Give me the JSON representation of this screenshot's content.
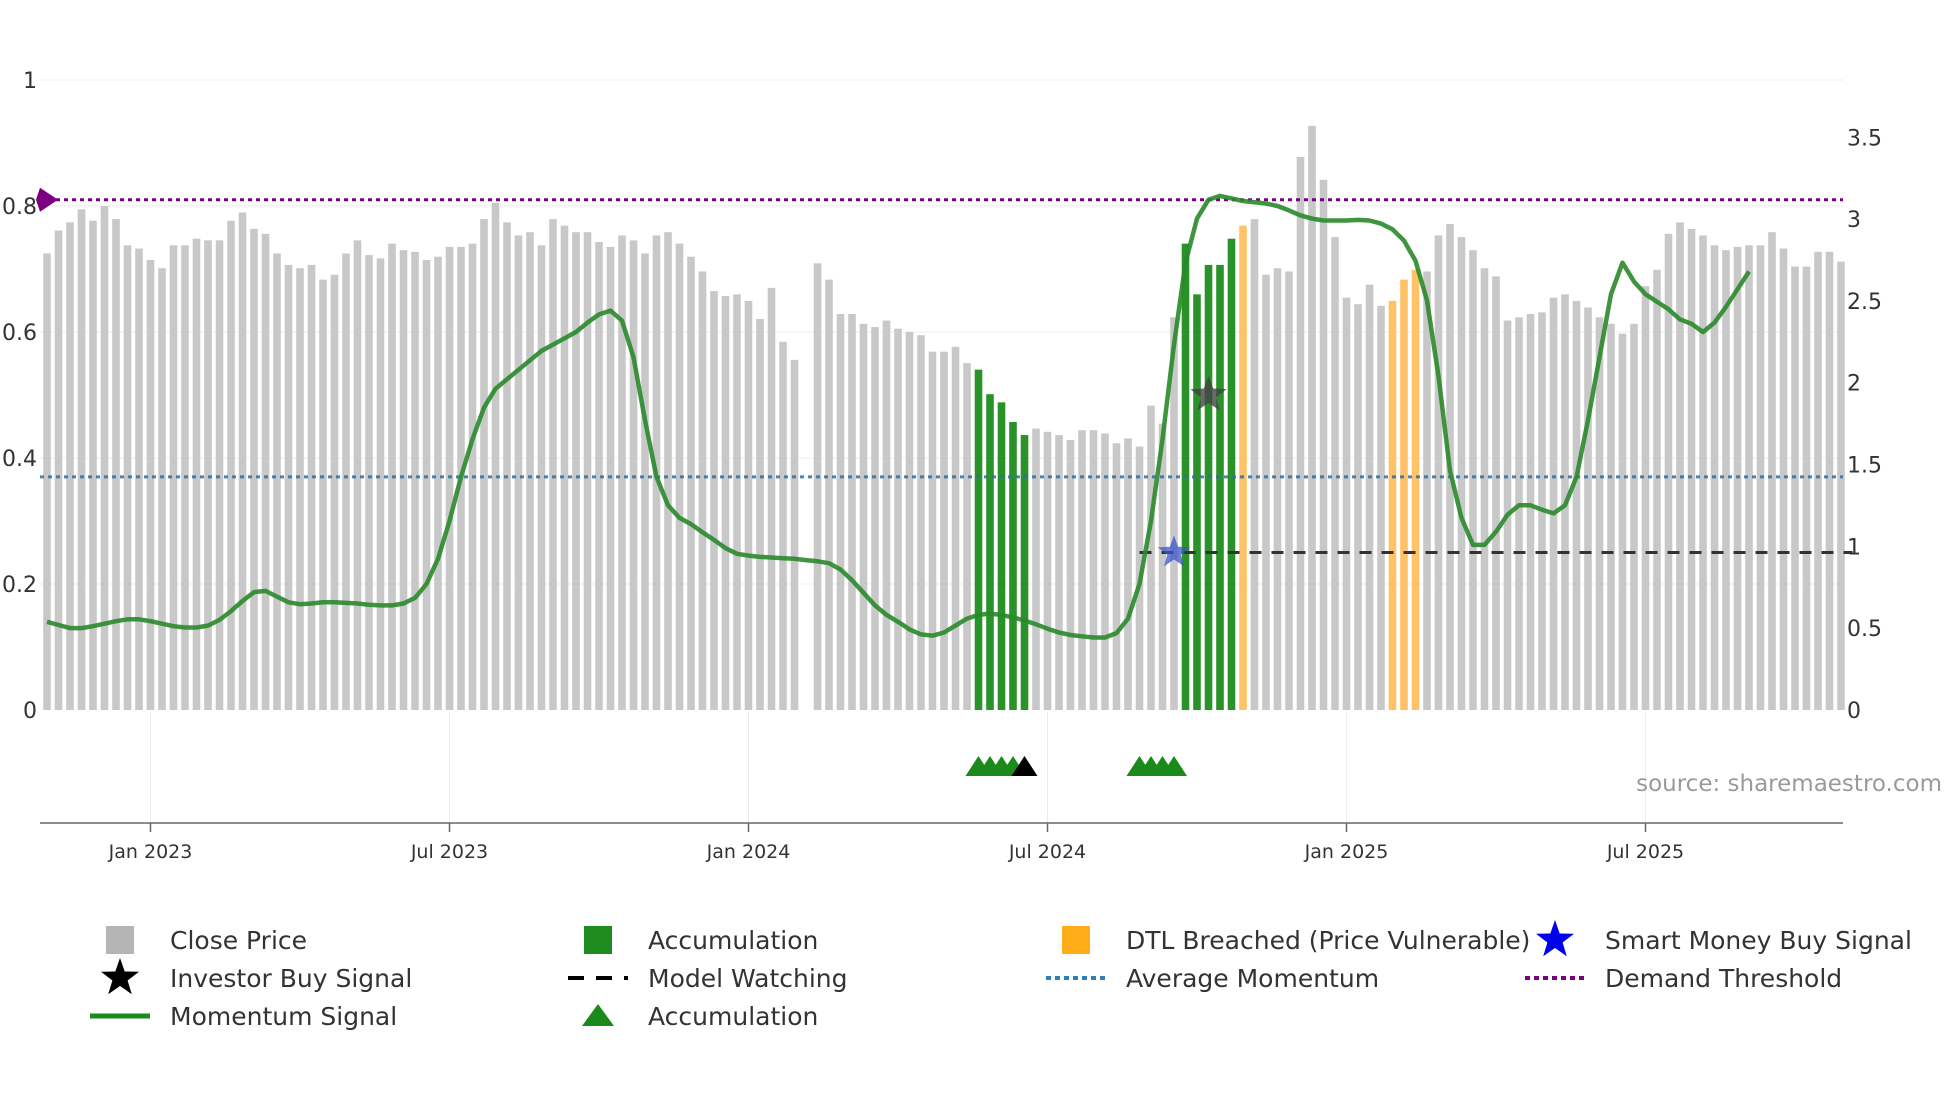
{
  "chart_data": {
    "type": "bar",
    "source": "source: sharemaestro.com",
    "left_axis": {
      "range": [
        0,
        1
      ],
      "ticks": [
        0,
        0.2,
        0.4,
        0.6,
        0.8,
        1
      ],
      "labels": [
        "0",
        "0.2",
        "0.4",
        "0.6",
        "0.8",
        "1"
      ]
    },
    "right_axis": {
      "range": [
        0,
        3.85
      ],
      "ticks": [
        0,
        0.5,
        1,
        1.5,
        2,
        2.5,
        3,
        3.5
      ],
      "labels": [
        "0",
        "0.5",
        "1",
        "1.5",
        "2",
        "2.5",
        "3",
        "3.5"
      ]
    },
    "x_axis": {
      "ticks": [
        {
          "week": 9,
          "label": "Jan 2023"
        },
        {
          "week": 35,
          "label": "Jul 2023"
        },
        {
          "week": 61,
          "label": "Jan 2024"
        },
        {
          "week": 87,
          "label": "Jul 2024"
        },
        {
          "week": 113,
          "label": "Jan 2025"
        },
        {
          "week": 139,
          "label": "Jul 2025"
        }
      ]
    },
    "colors": {
      "close": "#c8c8c8",
      "accumulation": "#1e8c1e",
      "dtl": "#ffc266",
      "momentum": "#2a8a2a",
      "average": "#2f6fa0",
      "demand": "#7a0080",
      "watch": "#333333"
    },
    "close_price": [
      2.79,
      2.93,
      2.98,
      3.06,
      2.99,
      3.08,
      3.0,
      2.84,
      2.82,
      2.75,
      2.7,
      2.84,
      2.84,
      2.88,
      2.87,
      2.87,
      2.99,
      3.04,
      2.94,
      2.91,
      2.79,
      2.72,
      2.7,
      2.72,
      2.63,
      2.66,
      2.79,
      2.87,
      2.78,
      2.76,
      2.85,
      2.81,
      2.8,
      2.75,
      2.77,
      2.83,
      2.83,
      2.85,
      3.0,
      3.1,
      2.98,
      2.9,
      2.92,
      2.84,
      3.0,
      2.96,
      2.92,
      2.92,
      2.86,
      2.83,
      2.9,
      2.87,
      2.79,
      2.9,
      2.92,
      2.85,
      2.77,
      2.68,
      2.56,
      2.53,
      2.54,
      2.5,
      2.39,
      2.58,
      2.25,
      2.14,
      null,
      2.73,
      2.63,
      2.42,
      2.42,
      2.36,
      2.34,
      2.38,
      2.33,
      2.31,
      2.29,
      2.19,
      2.19,
      2.22,
      2.12,
      2.08,
      1.93,
      1.88,
      1.76,
      1.68,
      1.72,
      1.7,
      1.68,
      1.65,
      1.71,
      1.71,
      1.69,
      1.63,
      1.66,
      1.61,
      1.86,
      1.75,
      2.4,
      2.85,
      2.54,
      2.72,
      2.72,
      2.88,
      2.96,
      3.0,
      2.66,
      2.7,
      2.68,
      3.38,
      3.57,
      3.24,
      2.89,
      2.52,
      2.48,
      2.6,
      2.47,
      2.5,
      2.63,
      2.69,
      2.68,
      2.9,
      2.97,
      2.89,
      2.81,
      2.7,
      2.65,
      2.38,
      2.4,
      2.42,
      2.43,
      2.52,
      2.54,
      2.5,
      2.46,
      2.4,
      2.36,
      2.3,
      2.36,
      2.59,
      2.69,
      2.91,
      2.98,
      2.94,
      2.9,
      2.84,
      2.81,
      2.83,
      2.84,
      2.84,
      2.92,
      2.82,
      2.71,
      2.71,
      2.8,
      2.8,
      2.74
    ],
    "bar_type": "cccccccccccccccccccccccccccccccccccccccccccccccccccccccccccccccccccccccccccccccccaaaaacccccccccccccaaaaadccccccccccccdddcccccccccccccccccccccccccccccccccccccccccccccccc",
    "momentum_signal": [
      0.14,
      0.135,
      0.13,
      0.13,
      0.133,
      0.137,
      0.141,
      0.144,
      0.144,
      0.141,
      0.137,
      0.133,
      0.131,
      0.131,
      0.134,
      0.143,
      0.157,
      0.173,
      0.187,
      0.189,
      0.18,
      0.171,
      0.168,
      0.169,
      0.171,
      0.171,
      0.17,
      0.169,
      0.167,
      0.166,
      0.166,
      0.169,
      0.178,
      0.2,
      0.24,
      0.3,
      0.37,
      0.43,
      0.48,
      0.51,
      0.525,
      0.54,
      0.555,
      0.57,
      0.58,
      0.59,
      0.6,
      0.615,
      0.628,
      0.634,
      0.618,
      0.56,
      0.46,
      0.37,
      0.325,
      0.305,
      0.295,
      0.282,
      0.27,
      0.257,
      0.248,
      0.245,
      0.243,
      0.242,
      0.241,
      0.24,
      0.238,
      0.236,
      0.233,
      0.223,
      0.206,
      0.186,
      0.166,
      0.151,
      0.14,
      0.128,
      0.12,
      0.118,
      0.123,
      0.134,
      0.145,
      0.151,
      0.153,
      0.151,
      0.147,
      0.142,
      0.136,
      0.129,
      0.123,
      0.119,
      0.117,
      0.115,
      0.115,
      0.122,
      0.145,
      0.2,
      0.3,
      0.43,
      0.58,
      0.71,
      0.78,
      0.81,
      0.816,
      0.812,
      0.808,
      0.806,
      0.804,
      0.8,
      0.793,
      0.785,
      0.78,
      0.777,
      0.777,
      0.777,
      0.778,
      0.777,
      0.772,
      0.763,
      0.745,
      0.713,
      0.65,
      0.53,
      0.38,
      0.305,
      0.262,
      0.262,
      0.283,
      0.31,
      0.325,
      0.325,
      0.318,
      0.312,
      0.325,
      0.37,
      0.46,
      0.56,
      0.66,
      0.71,
      0.68,
      0.66,
      0.648,
      0.636,
      0.62,
      0.613,
      0.6,
      0.615,
      0.64,
      0.668,
      0.696
    ],
    "average_momentum": 0.37,
    "demand_threshold": 0.81,
    "model_watching": {
      "level": 0.25,
      "from_week": 95,
      "to_week": 157
    },
    "smart_money_buy": {
      "week": 98,
      "value": 0.25
    },
    "investor_buy": {
      "week": 101,
      "value": 0.5
    },
    "accumulation_markers": [
      81,
      82,
      83,
      84,
      95,
      96,
      97,
      98
    ],
    "investor_markers": [
      85
    ],
    "legend": [
      {
        "key": "close",
        "label": "Close Price"
      },
      {
        "key": "acc_bar",
        "label": "Accumulation"
      },
      {
        "key": "dtl",
        "label": "DTL Breached (Price Vulnerable)"
      },
      {
        "key": "smart",
        "label": "Smart Money Buy Signal"
      },
      {
        "key": "investor",
        "label": "Investor Buy Signal"
      },
      {
        "key": "watch",
        "label": "Model Watching"
      },
      {
        "key": "avg",
        "label": "Average Momentum"
      },
      {
        "key": "demand",
        "label": "Demand Threshold"
      },
      {
        "key": "momentum",
        "label": "Momentum Signal"
      },
      {
        "key": "acc_tri",
        "label": "Accumulation"
      }
    ]
  }
}
